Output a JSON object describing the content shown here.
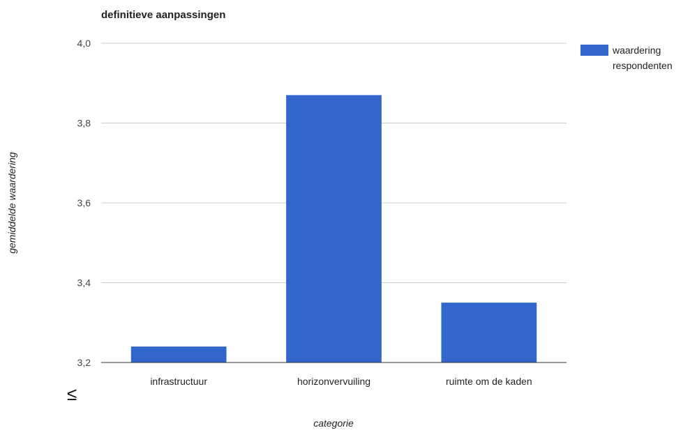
{
  "chart_data": {
    "type": "bar",
    "title": "definitieve aanpassingen",
    "xlabel": "categorie",
    "ylabel": "gemiddelde waardering",
    "categories": [
      "infrastructuur",
      "horizonvervuiling",
      "ruimte om de kaden"
    ],
    "series": [
      {
        "name": "waardering respondenten",
        "values": [
          3.24,
          3.87,
          3.35
        ],
        "color": "#3366cc"
      }
    ],
    "ylim": [
      3.2,
      4.0
    ],
    "yticks": [
      "3,2",
      "3,4",
      "3,6",
      "3,8",
      "4,0"
    ],
    "ytick_values": [
      3.2,
      3.4,
      3.6,
      3.8,
      4.0
    ],
    "grid": true,
    "legend_position": "right"
  },
  "annotations": {
    "corner_glyph": "≤"
  }
}
